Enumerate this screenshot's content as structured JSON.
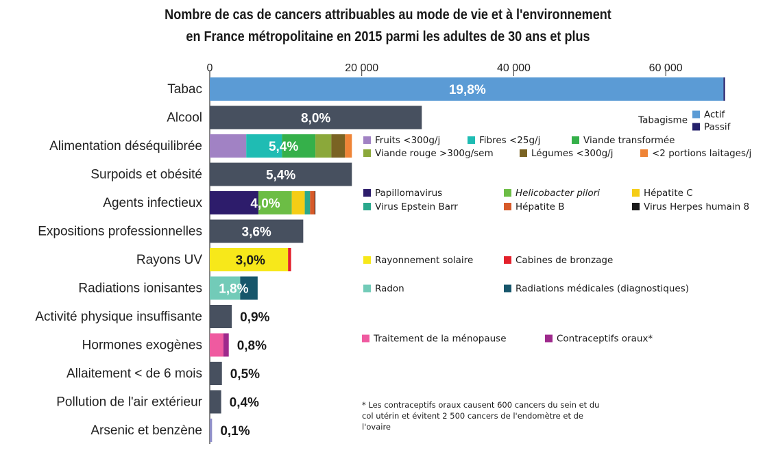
{
  "title_line1": "Nombre de cas de cancers attribuables au mode de vie et à l'environnement",
  "title_line2": "en France métropolitaine en 2015 parmi les adultes de 30 ans et plus",
  "colors": {
    "bar_default": "#47505f",
    "tabac_actif": "#5b9bd5",
    "tabac_passif": "#24206b"
  },
  "chart_data": {
    "type": "bar",
    "orientation": "horizontal",
    "stacked": true,
    "title": "Nombre de cas de cancers attribuables au mode de vie et à l'environnement en France métropolitaine en 2015 parmi les adultes de 30 ans et plus",
    "xlim": [
      0,
      70000
    ],
    "x_ticks": [
      0,
      20000,
      40000,
      60000
    ],
    "x_tick_labels": [
      "0",
      "20 000",
      "40 000",
      "60 000"
    ],
    "x_axis_position": "top",
    "grid": false,
    "categories": [
      {
        "label": "Tabac",
        "pct_label": "19,8%",
        "pct_inside": true,
        "pct_color": "#ffffff",
        "segments": [
          {
            "name": "Actif",
            "value": 67600,
            "color": "#5b9bd5"
          },
          {
            "name": "Passif",
            "value": 200,
            "color": "#24206b"
          }
        ]
      },
      {
        "label": "Alcool",
        "pct_label": "8,0%",
        "pct_inside": true,
        "pct_color": "#ffffff",
        "segments": [
          {
            "name": "Alcool",
            "value": 27900,
            "color": "#47505f"
          }
        ]
      },
      {
        "label": "Alimentation déséquilibrée",
        "pct_label": "5,4%",
        "pct_inside": true,
        "pct_color": "#ffffff",
        "segments": [
          {
            "name": "Fruits <300g/j",
            "value": 4800,
            "color": "#a182c4"
          },
          {
            "name": "Fibres <25g/j",
            "value": 4700,
            "color": "#1fbcb3"
          },
          {
            "name": "Viande transformée",
            "value": 4400,
            "color": "#35b04a"
          },
          {
            "name": "Viande rouge >300g/sem",
            "value": 2100,
            "color": "#8ba83a"
          },
          {
            "name": "Légumes <300g/j",
            "value": 1800,
            "color": "#7a6323"
          },
          {
            "name": "<2 portions laitages/j",
            "value": 900,
            "color": "#ef8436"
          }
        ]
      },
      {
        "label": "Surpoids et obésité",
        "pct_label": "5,4%",
        "pct_inside": true,
        "pct_color": "#ffffff",
        "segments": [
          {
            "name": "Surpoids et obésité",
            "value": 18700,
            "color": "#47505f"
          }
        ]
      },
      {
        "label": "Agents infectieux",
        "pct_label": "4,0%",
        "pct_inside": true,
        "pct_color": "#ffffff",
        "segments": [
          {
            "name": "Papillomavirus",
            "value": 6400,
            "color": "#2d1c6b"
          },
          {
            "name": "Helicobacter pilori",
            "value": 4400,
            "color": "#6cbd45"
          },
          {
            "name": "Hépatite C",
            "value": 1700,
            "color": "#f5cd16"
          },
          {
            "name": "Virus Epstein Barr",
            "value": 700,
            "color": "#2aa88c"
          },
          {
            "name": "Hépatite B",
            "value": 600,
            "color": "#d75a29"
          },
          {
            "name": "Virus Herpes humain 8",
            "value": 100,
            "color": "#1a1a1a"
          }
        ]
      },
      {
        "label": "Expositions professionnelles",
        "pct_label": "3,6%",
        "pct_inside": true,
        "pct_color": "#ffffff",
        "segments": [
          {
            "name": "Expositions professionnelles",
            "value": 12300,
            "color": "#47505f"
          }
        ]
      },
      {
        "label": "Rayons UV",
        "pct_label": "3,0%",
        "pct_inside": true,
        "pct_color": "#1a1a1a",
        "segments": [
          {
            "name": "Rayonnement solaire",
            "value": 10300,
            "color": "#f7e81a"
          },
          {
            "name": "Cabines de bronzage",
            "value": 400,
            "color": "#e3202b"
          }
        ]
      },
      {
        "label": "Radiations ionisantes",
        "pct_label": "1,8%",
        "pct_inside": true,
        "pct_color": "#ffffff",
        "segments": [
          {
            "name": "Radon",
            "value": 4000,
            "color": "#72cbb8"
          },
          {
            "name": "Radiations médicales (diagnostiques)",
            "value": 2300,
            "color": "#17566b"
          }
        ]
      },
      {
        "label": "Activité physique insuffisante",
        "pct_label": "0,9%",
        "pct_inside": false,
        "pct_color": "#1a1a1a",
        "segments": [
          {
            "name": "Activité physique insuffisante",
            "value": 2900,
            "color": "#47505f"
          }
        ]
      },
      {
        "label": "Hormones exogènes",
        "pct_label": "0,8%",
        "pct_inside": false,
        "pct_color": "#1a1a1a",
        "segments": [
          {
            "name": "Traitement de la ménopause",
            "value": 1800,
            "color": "#ef5aa0"
          },
          {
            "name": "Contraceptifs oraux*",
            "value": 700,
            "color": "#9e2a8c"
          }
        ]
      },
      {
        "label": "Allaitement < de 6 mois",
        "pct_label": "0,5%",
        "pct_inside": false,
        "pct_color": "#1a1a1a",
        "segments": [
          {
            "name": "Allaitement < de 6 mois",
            "value": 1600,
            "color": "#47505f"
          }
        ]
      },
      {
        "label": "Pollution de l'air extérieur",
        "pct_label": "0,4%",
        "pct_inside": false,
        "pct_color": "#1a1a1a",
        "segments": [
          {
            "name": "Pollution de l'air extérieur",
            "value": 1500,
            "color": "#47505f"
          }
        ]
      },
      {
        "label": "Arsenic et benzène",
        "pct_label": "0,1%",
        "pct_inside": false,
        "pct_color": "#1a1a1a",
        "segments": [
          {
            "name": "Arsenic et benzène",
            "value": 300,
            "color": "#8f8fc8"
          }
        ]
      }
    ],
    "legend_groups": [
      {
        "row": 0,
        "title": "Tabagisme",
        "items": [
          {
            "label": "Actif",
            "color": "#5b9bd5"
          },
          {
            "label": "Passif",
            "color": "#24206b"
          }
        ]
      },
      {
        "row": 2,
        "items": [
          {
            "label": "Fruits <300g/j",
            "color": "#a182c4"
          },
          {
            "label": "Fibres <25g/j",
            "color": "#1fbcb3"
          },
          {
            "label": "Viande transformée",
            "color": "#35b04a"
          },
          {
            "label": "Viande rouge >300g/sem",
            "color": "#8ba83a"
          },
          {
            "label": "Légumes <300g/j",
            "color": "#7a6323"
          },
          {
            "label": "<2 portions laitages/j",
            "color": "#ef8436"
          }
        ]
      },
      {
        "row": 4,
        "items": [
          {
            "label": "Papillomavirus",
            "color": "#2d1c6b"
          },
          {
            "label": "Helicobacter pilori",
            "color": "#6cbd45",
            "italic": true
          },
          {
            "label": "Hépatite C",
            "color": "#f5cd16"
          },
          {
            "label": "Virus Epstein Barr",
            "color": "#2aa88c"
          },
          {
            "label": "Hépatite B",
            "color": "#d75a29"
          },
          {
            "label": "Virus Herpes humain 8",
            "color": "#1a1a1a"
          }
        ]
      },
      {
        "row": 6,
        "items": [
          {
            "label": "Rayonnement solaire",
            "color": "#f7e81a"
          },
          {
            "label": "Cabines de bronzage",
            "color": "#e3202b"
          }
        ]
      },
      {
        "row": 7,
        "items": [
          {
            "label": "Radon",
            "color": "#72cbb8"
          },
          {
            "label": "Radiations médicales (diagnostiques)",
            "color": "#17566b"
          }
        ]
      },
      {
        "row": 9,
        "items": [
          {
            "label": "Traitement de la ménopause",
            "color": "#ef5aa0"
          },
          {
            "label": "Contraceptifs oraux*",
            "color": "#9e2a8c"
          }
        ]
      }
    ],
    "footnote": [
      "* Les contraceptifs oraux causent 600 cancers du sein et du",
      "col utérin et évitent 2 500 cancers de l'endomètre et de",
      "l'ovaire"
    ]
  }
}
